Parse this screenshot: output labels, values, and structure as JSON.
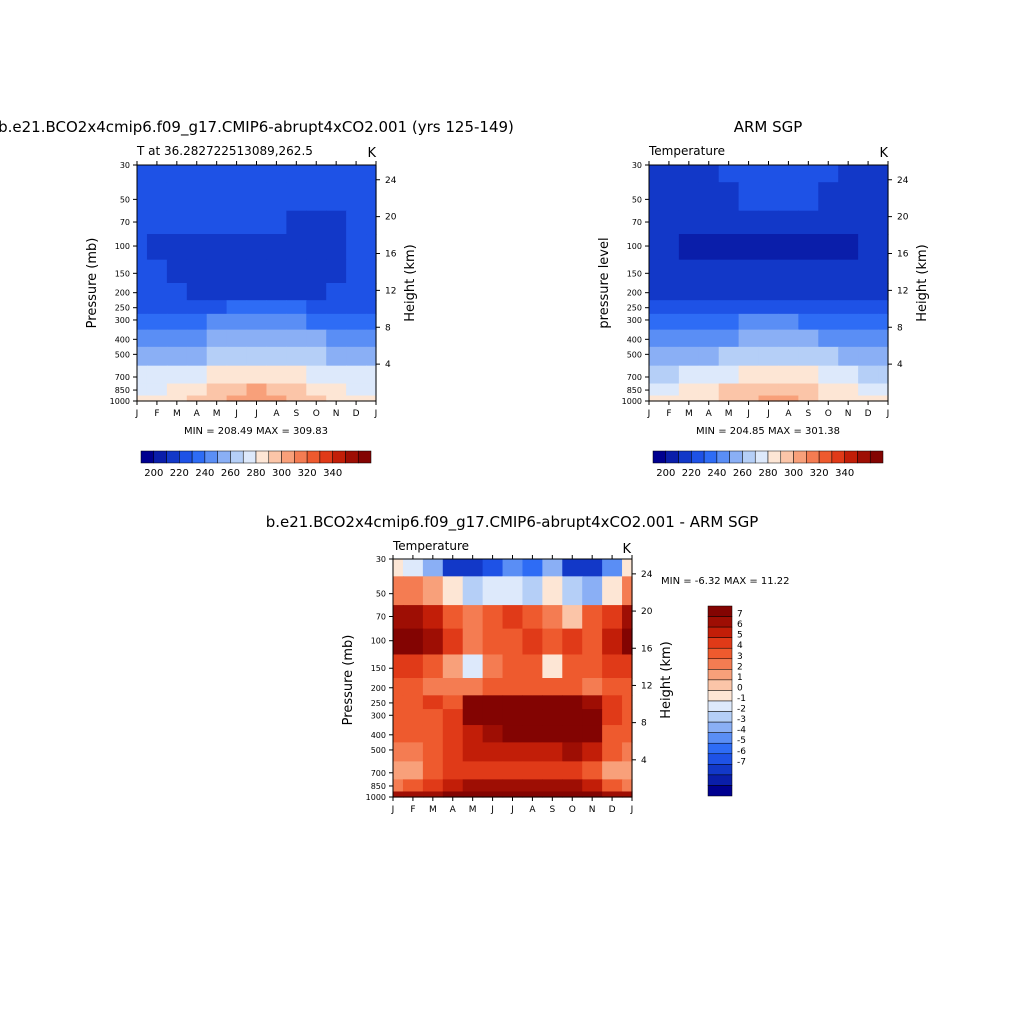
{
  "months": [
    "J",
    "F",
    "M",
    "A",
    "M",
    "J",
    "J",
    "A",
    "S",
    "O",
    "N",
    "D",
    "J"
  ],
  "pressure_ticks": [
    30,
    50,
    70,
    100,
    150,
    200,
    250,
    300,
    400,
    500,
    700,
    850,
    1000
  ],
  "height_ticks": [
    4,
    8,
    12,
    16,
    20,
    24
  ],
  "units_label": "K",
  "colors": {
    "temperature": [
      "#00008f",
      "#0a1eaa",
      "#1238c8",
      "#1e52e6",
      "#2e6cf5",
      "#5a8ef5",
      "#8aaff5",
      "#b5cff7",
      "#dde9fb",
      "#fde6d5",
      "#fbc5a8",
      "#f8a07a",
      "#f47c52",
      "#ee5a2e",
      "#e03a18",
      "#c21e08",
      "#9e0e04",
      "#830402"
    ],
    "difference": [
      "#00008f",
      "#0a1eaa",
      "#1238c8",
      "#1e52e6",
      "#2e6cf5",
      "#5a8ef5",
      "#8aaff5",
      "#b5cff7",
      "#dde9fb",
      "#fde6d5",
      "#fbc5a8",
      "#f8a07a",
      "#f47c52",
      "#ee5a2e",
      "#e03a18",
      "#c21e08",
      "#9e0e04",
      "#830402"
    ]
  },
  "panels": {
    "model": {
      "title": "b.e21.BCO2x4cmip6.f09_g17.CMIP6-abrupt4xCO2.001 (yrs 125-149)",
      "left_label": "T at 36.282722513089,262.5",
      "ylabel": "Pressure (mb)",
      "y2label": "Height (km)",
      "stats": "MIN = 208.49 MAX = 309.83"
    },
    "obs": {
      "title": "ARM SGP",
      "left_label": "Temperature",
      "ylabel": "pressure level",
      "y2label": "Height (km)",
      "stats": "MIN = 204.85 MAX = 301.38"
    },
    "diff": {
      "title": "b.e21.BCO2x4cmip6.f09_g17.CMIP6-abrupt4xCO2.001 - ARM SGP",
      "left_label": "Temperature",
      "ylabel": "Pressure (mb)",
      "y2label": "Height (km)",
      "stats": "MIN =  -6.32 MAX =  11.22"
    }
  },
  "colorbars": {
    "temperature_labels": [
      "200",
      "220",
      "240",
      "260",
      "280",
      "300",
      "320",
      "340"
    ],
    "difference_labels": [
      "7",
      "6",
      "5",
      "4",
      "3",
      "2",
      "1",
      "0",
      "-1",
      "-2",
      "-3",
      "-4",
      "-5",
      "-6",
      "-7"
    ]
  },
  "chart_data": [
    {
      "type": "heatmap",
      "title": "b.e21.BCO2x4cmip6.f09_g17.CMIP6-abrupt4xCO2.001 (yrs 125-149)",
      "variable": "T at 36.282722513089,262.5",
      "units": "K",
      "x": [
        "J",
        "F",
        "M",
        "A",
        "M",
        "J",
        "J",
        "A",
        "S",
        "O",
        "N",
        "D",
        "J"
      ],
      "y": [
        30,
        50,
        70,
        100,
        150,
        200,
        250,
        300,
        400,
        500,
        700,
        850,
        1000
      ],
      "ylabel": "Pressure (mb)",
      "y2label": "Height (km)",
      "ylog": true,
      "values": [
        [
          222,
          222,
          222,
          222,
          222,
          222,
          222,
          222,
          222,
          222,
          222,
          222,
          222
        ],
        [
          221,
          221,
          221,
          221,
          221,
          221,
          221,
          221,
          221,
          221,
          221,
          221,
          221
        ],
        [
          220,
          220,
          220,
          220,
          220,
          220,
          220,
          220,
          219,
          218,
          219,
          220,
          220
        ],
        [
          222,
          217,
          216,
          215,
          213,
          212,
          212,
          213,
          216,
          217,
          219,
          222,
          222
        ],
        [
          222,
          220,
          216,
          214,
          213,
          213,
          213,
          214,
          214,
          215,
          217,
          222,
          222
        ],
        [
          222,
          222,
          220,
          219,
          218,
          218,
          218,
          218,
          218,
          219,
          220,
          222,
          222
        ],
        [
          226,
          226,
          226,
          227,
          228,
          230,
          231,
          231,
          230,
          229,
          228,
          226,
          226
        ],
        [
          233,
          233,
          233,
          236,
          240,
          243,
          243,
          243,
          241,
          238,
          235,
          233,
          233
        ],
        [
          244,
          244,
          245,
          248,
          251,
          254,
          256,
          256,
          253,
          250,
          247,
          244,
          244
        ],
        [
          254,
          254,
          256,
          259,
          263,
          266,
          268,
          268,
          265,
          262,
          258,
          254,
          254
        ],
        [
          270,
          270,
          272,
          276,
          280,
          285,
          288,
          287,
          283,
          279,
          274,
          270,
          270
        ],
        [
          278,
          279,
          282,
          287,
          292,
          296,
          300,
          299,
          294,
          288,
          283,
          279,
          278
        ],
        [
          283,
          284,
          287,
          292,
          297,
          302,
          305,
          304,
          298,
          292,
          287,
          283,
          283
        ]
      ],
      "color_levels": [
        200,
        220,
        240,
        260,
        280,
        300,
        320,
        340
      ],
      "min": 208.49,
      "max": 309.83
    },
    {
      "type": "heatmap",
      "title": "ARM SGP",
      "variable": "Temperature",
      "units": "K",
      "x": [
        "J",
        "F",
        "M",
        "A",
        "M",
        "J",
        "J",
        "A",
        "S",
        "O",
        "N",
        "D",
        "J"
      ],
      "y": [
        30,
        50,
        70,
        100,
        150,
        200,
        250,
        300,
        400,
        500,
        700,
        850,
        1000
      ],
      "ylabel": "pressure level",
      "y2label": "Height (km)",
      "ylog": true,
      "values": [
        [
          218,
          218,
          218,
          218,
          222,
          226,
          227,
          227,
          225,
          222,
          218,
          218,
          218
        ],
        [
          213,
          213,
          215,
          216,
          218,
          220,
          221,
          221,
          220,
          217,
          215,
          213,
          213
        ],
        [
          210,
          212,
          213,
          213,
          214,
          215,
          216,
          216,
          215,
          213,
          212,
          210,
          210
        ],
        [
          210,
          210,
          209,
          208,
          208,
          207,
          207,
          207,
          207,
          208,
          209,
          210,
          210
        ],
        [
          214,
          214,
          214,
          213,
          212,
          211,
          210,
          210,
          211,
          212,
          213,
          214,
          214
        ],
        [
          219,
          219,
          219,
          218,
          216,
          216,
          216,
          216,
          216,
          217,
          218,
          219,
          219
        ],
        [
          224,
          224,
          224,
          225,
          226,
          228,
          229,
          229,
          228,
          226,
          225,
          224,
          224
        ],
        [
          231,
          231,
          232,
          234,
          237,
          240,
          241,
          241,
          239,
          236,
          233,
          231,
          231
        ],
        [
          242,
          242,
          243,
          246,
          249,
          252,
          254,
          254,
          251,
          248,
          245,
          242,
          242
        ],
        [
          252,
          252,
          254,
          257,
          261,
          264,
          266,
          266,
          263,
          260,
          256,
          252,
          252
        ],
        [
          268,
          268,
          270,
          274,
          278,
          283,
          286,
          285,
          281,
          277,
          272,
          268,
          268
        ],
        [
          276,
          277,
          280,
          285,
          290,
          294,
          297,
          296,
          292,
          286,
          281,
          277,
          276
        ],
        [
          280,
          281,
          284,
          289,
          294,
          299,
          301,
          300,
          295,
          289,
          284,
          280,
          280
        ]
      ],
      "color_levels": [
        200,
        220,
        240,
        260,
        280,
        300,
        320,
        340
      ],
      "min": 204.85,
      "max": 301.38
    },
    {
      "type": "heatmap",
      "title": "b.e21.BCO2x4cmip6.f09_g17.CMIP6-abrupt4xCO2.001 - ARM SGP",
      "variable": "Temperature",
      "units": "K",
      "x": [
        "J",
        "F",
        "M",
        "A",
        "M",
        "J",
        "J",
        "A",
        "S",
        "O",
        "N",
        "D",
        "J"
      ],
      "y": [
        30,
        50,
        70,
        100,
        150,
        200,
        250,
        300,
        400,
        500,
        700,
        850,
        1000
      ],
      "ylabel": "Pressure (mb)",
      "y2label": "Height (km)",
      "ylog": true,
      "values": [
        [
          1,
          0,
          -2,
          -6,
          -6,
          -5,
          -3,
          -4,
          -2,
          -6,
          -6,
          -3,
          1
        ],
        [
          4,
          4,
          3,
          1,
          -1,
          0,
          0,
          -1,
          1,
          -1,
          -2,
          1,
          4
        ],
        [
          8,
          8,
          7,
          5,
          4,
          5,
          6,
          5,
          4,
          2,
          5,
          6,
          8
        ],
        [
          9,
          9,
          8,
          6,
          4,
          5,
          5,
          6,
          5,
          6,
          5,
          7,
          9
        ],
        [
          6,
          6,
          5,
          3,
          0,
          4,
          5,
          5,
          1,
          5,
          5,
          6,
          6
        ],
        [
          5,
          5,
          4,
          4,
          4,
          5,
          5,
          5,
          5,
          5,
          4,
          5,
          5
        ],
        [
          5,
          5,
          6,
          5,
          9,
          9,
          9,
          9,
          9,
          9,
          8,
          6,
          5
        ],
        [
          5,
          5,
          5,
          6,
          9,
          9,
          9,
          9,
          9,
          9,
          9,
          6,
          5
        ],
        [
          5,
          5,
          5,
          6,
          7,
          8,
          9,
          9,
          9,
          9,
          9,
          5,
          5
        ],
        [
          4,
          4,
          5,
          6,
          7,
          7,
          7,
          7,
          7,
          8,
          7,
          5,
          4
        ],
        [
          3,
          3,
          5,
          6,
          6,
          6,
          6,
          6,
          6,
          6,
          5,
          3,
          3
        ],
        [
          4,
          5,
          6,
          7,
          8,
          8,
          8,
          8,
          8,
          8,
          7,
          5,
          4
        ],
        [
          8,
          8,
          8,
          9,
          9,
          9,
          9,
          9,
          9,
          9,
          9,
          8,
          8
        ]
      ],
      "color_levels": [
        -7,
        -6,
        -5,
        -4,
        -3,
        -2,
        -1,
        0,
        1,
        2,
        3,
        4,
        5,
        6,
        7
      ],
      "min": -6.32,
      "max": 11.22
    }
  ]
}
